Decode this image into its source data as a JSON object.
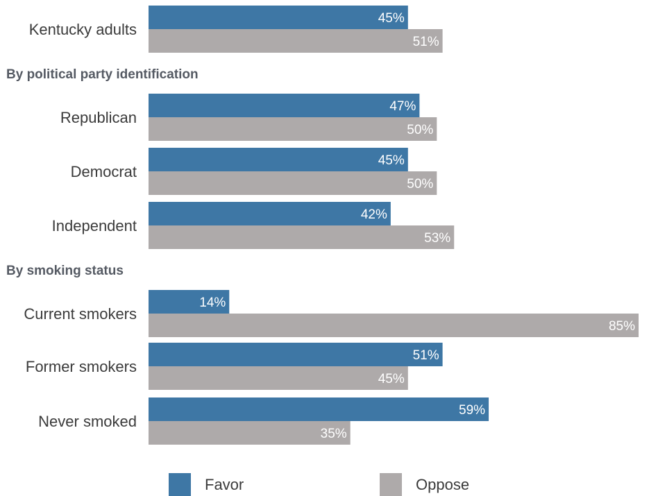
{
  "chart_data": {
    "type": "bar",
    "orientation": "horizontal",
    "value_format": "percent",
    "groups": [
      {
        "heading": "",
        "categories": [
          "Kentucky adults"
        ]
      },
      {
        "heading": "By political party identification",
        "categories": [
          "Republican",
          "Democrat",
          "Independent"
        ]
      },
      {
        "heading": "By smoking status",
        "categories": [
          "Current smokers",
          "Former smokers",
          "Never smoked"
        ]
      }
    ],
    "categories": [
      "Kentucky adults",
      "Republican",
      "Democrat",
      "Independent",
      "Current smokers",
      "Former smokers",
      "Never smoked"
    ],
    "series": [
      {
        "name": "Favor",
        "color": "#3e77a5",
        "values": [
          45,
          47,
          45,
          42,
          14,
          51,
          59
        ]
      },
      {
        "name": "Oppose",
        "color": "#aeaaaa",
        "values": [
          51,
          50,
          50,
          53,
          85,
          45,
          35
        ]
      }
    ],
    "data_labels": {
      "Favor": [
        "45%",
        "47%",
        "45%",
        "42%",
        "14%",
        "51%",
        "59%"
      ],
      "Oppose": [
        "51%",
        "50%",
        "50%",
        "53%",
        "85%",
        "45%",
        "35%"
      ]
    },
    "xlim": [
      0,
      85
    ],
    "legend": {
      "position": "bottom",
      "entries": [
        "Favor",
        "Oppose"
      ]
    },
    "grid": false,
    "title": "",
    "xlabel": "",
    "ylabel": ""
  }
}
